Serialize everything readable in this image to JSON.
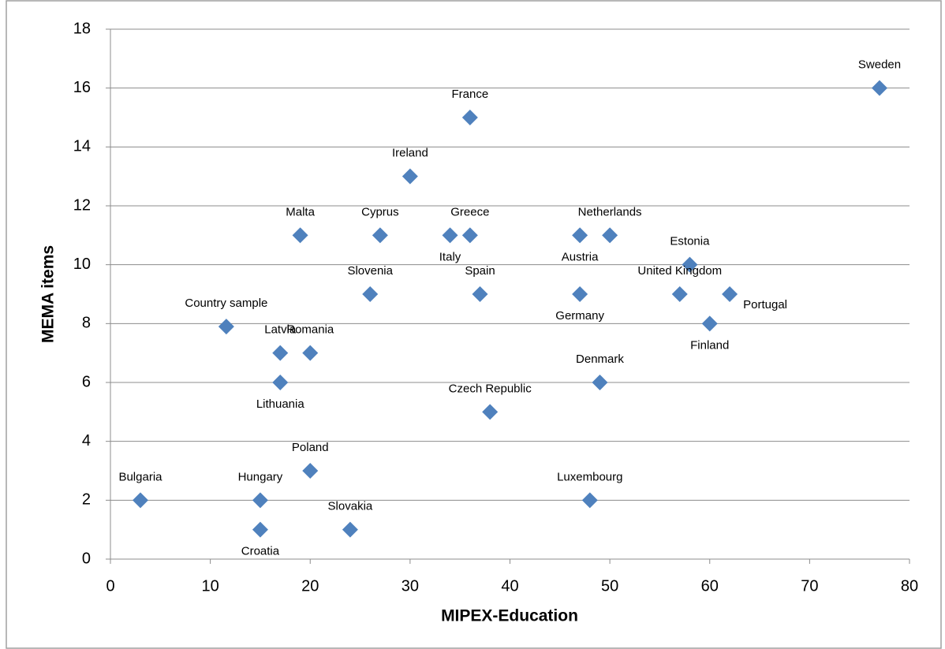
{
  "chart_data": {
    "type": "scatter",
    "xlabel": "MIPEX-Education",
    "ylabel": "MEMA items",
    "point_labels": [
      "Sweden",
      "France",
      "Ireland",
      "Malta",
      "Cyprus",
      "Italy",
      "Greece",
      "Austria",
      "Netherlands",
      "Estonia",
      "Slovenia",
      "Spain",
      "Germany",
      "United Kingdom",
      "Portugal",
      "Finland",
      "Country sample",
      "Latvia",
      "Romania",
      "Lithuania",
      "Denmark",
      "Czech Republic",
      "Poland",
      "Bulgaria",
      "Hungary",
      "Luxembourg",
      "Croatia",
      "Slovakia"
    ],
    "x": [
      77,
      36,
      30,
      19,
      27,
      34,
      36,
      47,
      50,
      58,
      26,
      37,
      47,
      57,
      62,
      60,
      11.6,
      17,
      20,
      17,
      49,
      38,
      20,
      3,
      15,
      48,
      15,
      24
    ],
    "values": [
      16,
      15,
      13,
      11,
      11,
      11,
      11,
      11,
      11,
      10,
      9,
      9,
      9,
      9,
      9,
      8,
      7.9,
      7,
      7,
      6,
      6,
      5,
      3,
      2,
      2,
      2,
      1,
      1
    ],
    "color": "#4f81bd",
    "xlim": [
      0,
      80
    ],
    "xticks": [
      0,
      10,
      20,
      30,
      40,
      50,
      60,
      70,
      80
    ],
    "ylim": [
      0,
      18
    ],
    "yticks": [
      0,
      2,
      4,
      6,
      8,
      10,
      12,
      14,
      16,
      18
    ],
    "grid": "y"
  }
}
